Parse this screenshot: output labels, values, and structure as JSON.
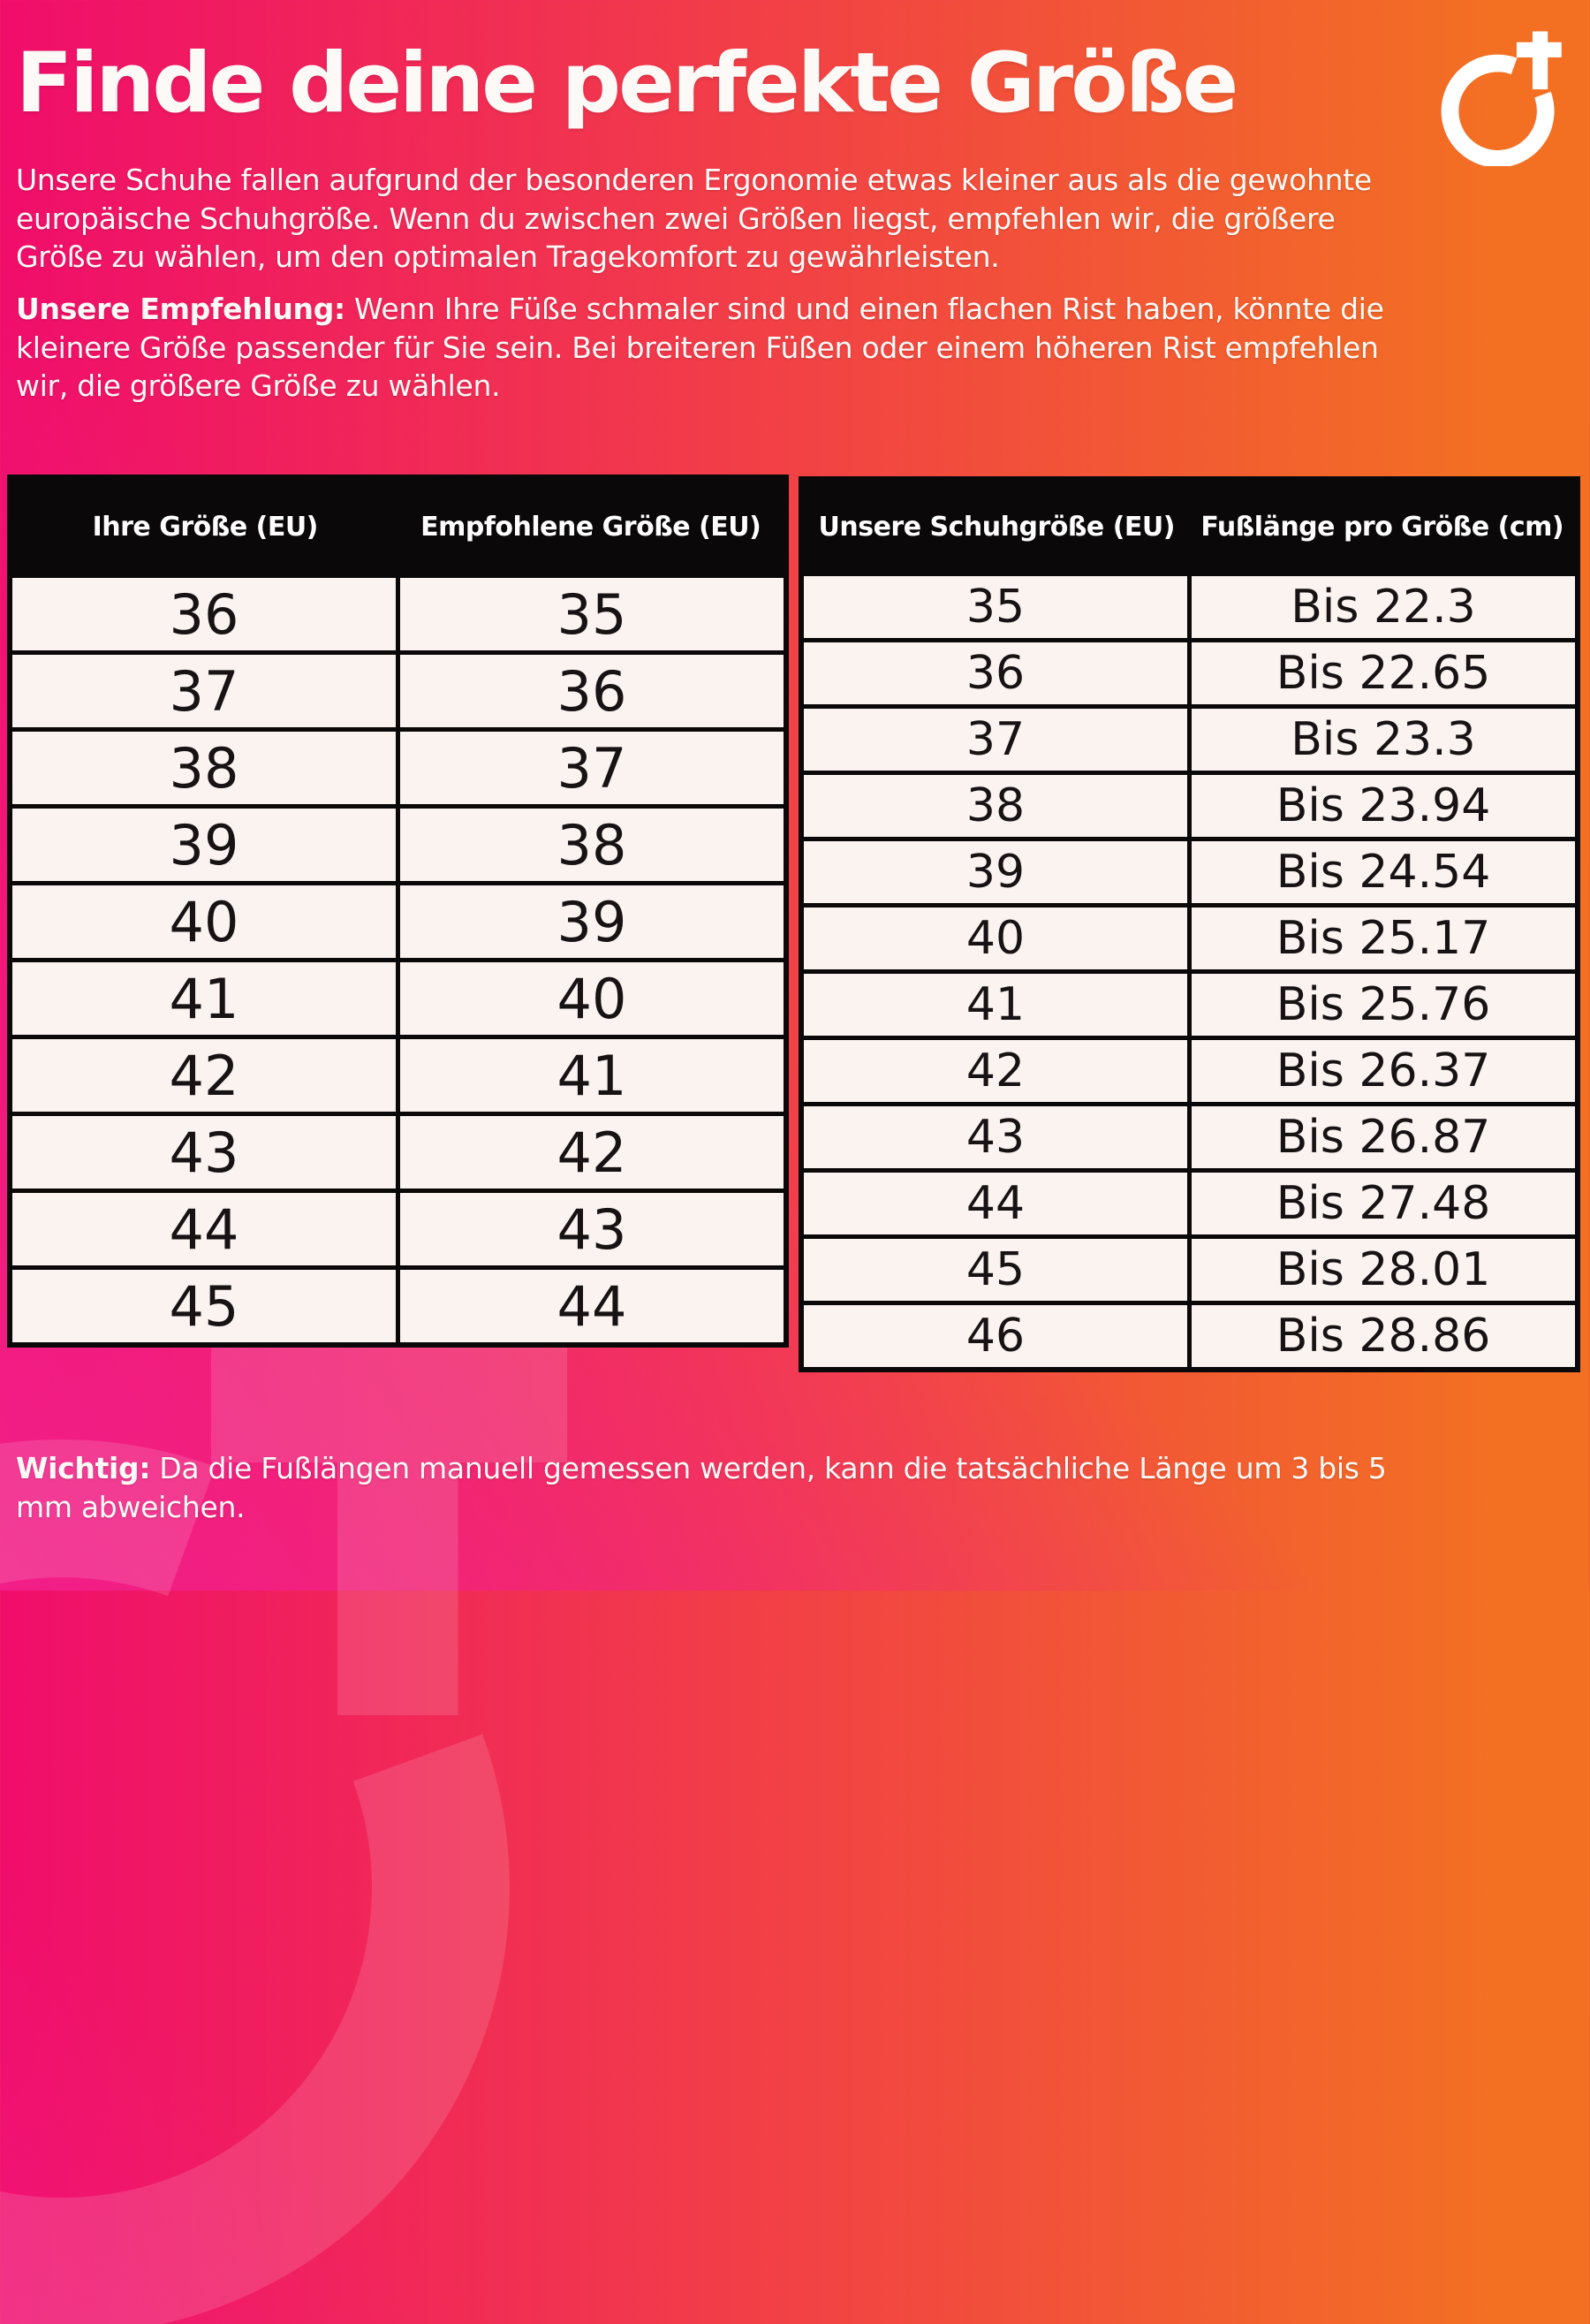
{
  "header": {
    "title": "Finde deine perfekte Größe",
    "logo": "circle-plus-brand-mark"
  },
  "intro": "Unsere Schuhe fallen aufgrund der besonderen Ergonomie etwas kleiner aus als die gewohnte europäische Schuhgröße. Wenn du zwischen zwei Größen liegst, empfehlen wir, die größere Größe zu wählen, um den optimalen Tragekomfort zu gewährleisten.",
  "recommendation": {
    "label": "Unsere Empfehlung:",
    "text": "Wenn Ihre Füße schmaler sind und einen flachen Rist haben, könnte die kleinere Größe passender für Sie sein. Bei breiteren Füßen oder einem höheren Rist empfehlen wir, die größere Größe zu wählen."
  },
  "size_table": {
    "headers": [
      "Ihre Größe (EU)",
      "Empfohlene Größe (EU)"
    ],
    "rows": [
      [
        "36",
        "35"
      ],
      [
        "37",
        "36"
      ],
      [
        "38",
        "37"
      ],
      [
        "39",
        "38"
      ],
      [
        "40",
        "39"
      ],
      [
        "41",
        "40"
      ],
      [
        "42",
        "41"
      ],
      [
        "43",
        "42"
      ],
      [
        "44",
        "43"
      ],
      [
        "45",
        "44"
      ]
    ]
  },
  "foot_length_table": {
    "headers": [
      "Unsere Schuhgröße (EU)",
      "Fußlänge pro Größe (cm)"
    ],
    "rows": [
      [
        "35",
        "Bis 22.3"
      ],
      [
        "36",
        "Bis 22.65"
      ],
      [
        "37",
        "Bis 23.3"
      ],
      [
        "38",
        "Bis 23.94"
      ],
      [
        "39",
        "Bis 24.54"
      ],
      [
        "40",
        "Bis 25.17"
      ],
      [
        "41",
        "Bis 25.76"
      ],
      [
        "42",
        "Bis 26.37"
      ],
      [
        "43",
        "Bis 26.87"
      ],
      [
        "44",
        "Bis 27.48"
      ],
      [
        "45",
        "Bis 28.01"
      ],
      [
        "46",
        "Bis 28.86"
      ]
    ]
  },
  "note": {
    "label": "Wichtig:",
    "text": "Da die Fußlängen manuell gemessen werden, kann die tatsächliche Länge um 3 bis 5 mm abweichen."
  },
  "colors": {
    "gradient_left_magenta": "#f00d6b",
    "gradient_bottom_pink": "#f2208a",
    "gradient_right_orange": "#f37023",
    "table_header_bg": "#0a0808",
    "table_cell_bg": "#faf3f0",
    "text_on_gradient": "#fdf9f7",
    "table_text": "#171214"
  }
}
